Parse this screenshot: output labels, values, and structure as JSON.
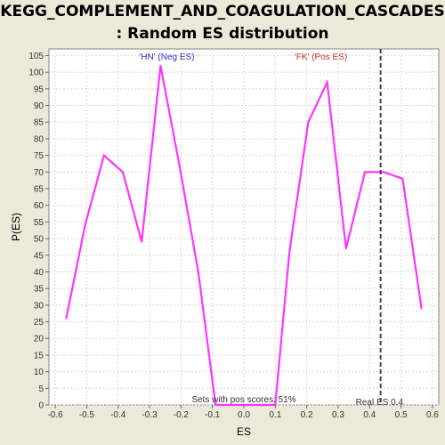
{
  "title_line1": "KEGG_COMPLEMENT_AND_COAGULATION_CASCADES",
  "title_line2": ": Random ES distribution",
  "chart_data": {
    "type": "line",
    "title": "KEGG_COMPLEMENT_AND_COAGULATION_CASCADES : Random ES distribution",
    "xlabel": "ES",
    "ylabel": "P(ES)",
    "xlim": [
      -0.62,
      0.62
    ],
    "ylim": [
      0,
      107
    ],
    "xticks": [
      "-0.6",
      "-0.5",
      "-0.4",
      "-0.3",
      "-0.2",
      "-0.1",
      "0.0",
      "0.1",
      "0.2",
      "0.3",
      "0.4",
      "0.5",
      "0.6"
    ],
    "yticks": [
      "0",
      "5",
      "10",
      "15",
      "20",
      "25",
      "30",
      "35",
      "40",
      "45",
      "50",
      "55",
      "60",
      "65",
      "70",
      "75",
      "80",
      "85",
      "90",
      "95",
      "100",
      "105"
    ],
    "grid": true,
    "series": [
      {
        "color": "#ff33ff",
        "x": [
          -0.565,
          -0.505,
          -0.445,
          -0.385,
          -0.325,
          -0.265,
          -0.205,
          -0.145,
          -0.09,
          0.1,
          0.145,
          0.205,
          0.265,
          0.325,
          0.385,
          0.445,
          0.505,
          0.565
        ],
        "y": [
          26,
          54,
          75,
          70,
          49,
          102,
          72,
          40,
          0,
          0,
          46,
          85,
          97,
          47,
          70,
          70,
          68,
          29
        ]
      }
    ],
    "real_es": 0.435,
    "annotations": {
      "neg_label": "'HN' (Neg ES)",
      "neg_color": "#3333cc",
      "pos_label": "'FK' (Pos ES)",
      "pos_color": "#cc3333",
      "sets_text": "Sets with pos scores: 51%",
      "real_es_text": "Real ES 0.4"
    }
  }
}
